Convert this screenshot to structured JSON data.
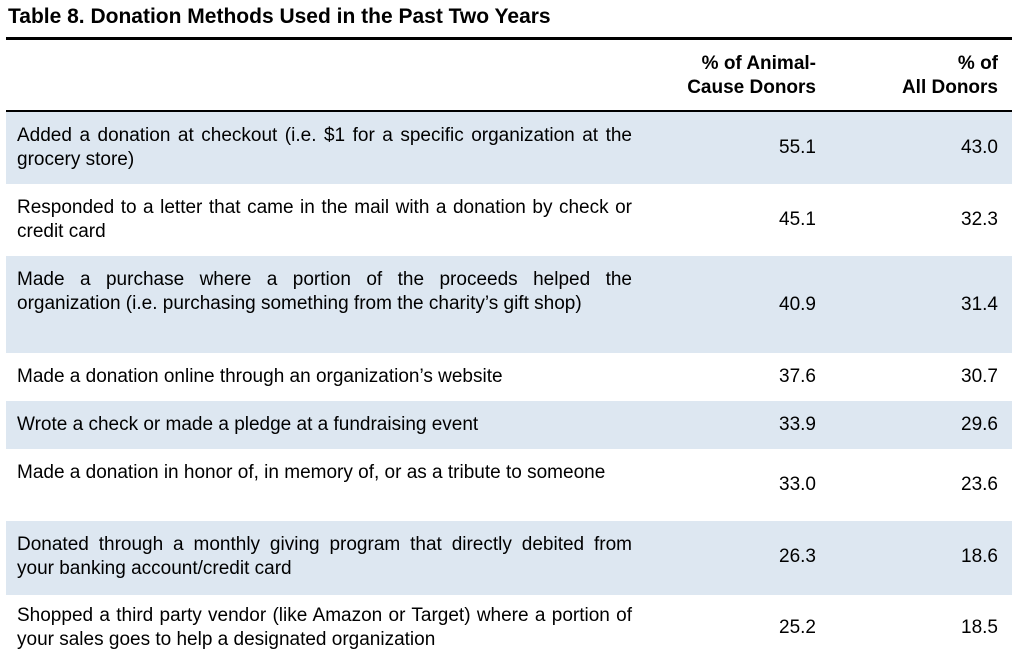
{
  "title": "Table 8. Donation Methods Used in the Past Two Years",
  "columns": {
    "animal_line1": "% of Animal-",
    "animal_line2": "Cause Donors",
    "all_line1": "% of",
    "all_line2": "All Donors"
  },
  "rows": [
    {
      "label": "Added a donation at checkout (i.e. $1 for a specific organization at the grocery store)",
      "animal": "55.1",
      "all": "43.0"
    },
    {
      "label": "Responded to a letter that came in the mail with a donation by check or credit card",
      "animal": "45.1",
      "all": "32.3"
    },
    {
      "label": "Made a purchase where a portion of the proceeds helped the organization (i.e. purchasing something from the charity’s gift shop)",
      "animal": "40.9",
      "all": "31.4"
    },
    {
      "label": "Made a donation online through an organization’s website",
      "animal": "37.6",
      "all": "30.7"
    },
    {
      "label": "Wrote a check or made a pledge at a fundraising event",
      "animal": "33.9",
      "all": "29.6"
    },
    {
      "label": "Made a donation in honor of, in memory of, or as a tribute to someone",
      "animal": "33.0",
      "all": "23.6"
    },
    {
      "label": "Donated through a monthly giving program that directly debited from your banking account/credit card",
      "animal": "26.3",
      "all": "18.6"
    },
    {
      "label": "Shopped a third party vendor (like Amazon or Target) where a portion of your sales goes to help a designated organization",
      "animal": "25.2",
      "all": "18.5"
    }
  ],
  "colors": {
    "shaded_row": "#dde7f1",
    "plain_row": "#ffffff"
  }
}
